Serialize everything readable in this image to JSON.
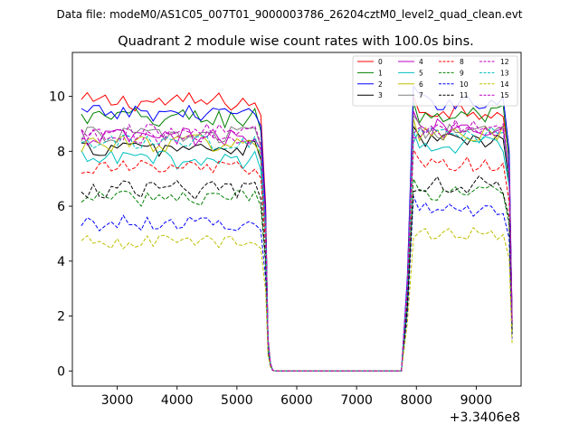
{
  "header": {
    "data_file": "Data file: modeM0/AS1C05_007T01_9000003786_26204cztM0_level2_quad_clean.evt"
  },
  "chart_data": {
    "type": "line",
    "title": "Quadrant 2 module wise count rates with 100.0s bins.",
    "xlabel": "",
    "ylabel": "",
    "x_offset_label": "+3.3406e8",
    "xlim": [
      2250,
      9750
    ],
    "ylim": [
      -0.55,
      11.6
    ],
    "xticks": [
      3000,
      4000,
      5000,
      6000,
      7000,
      8000,
      9000
    ],
    "yticks": [
      0,
      2,
      4,
      6,
      8,
      10
    ],
    "legend_position": "top-right",
    "time_segments": {
      "x1": [
        2400,
        2500,
        2600,
        2700,
        2800,
        2900,
        3000,
        3100,
        3200,
        3300,
        3400,
        3500,
        3600,
        3700,
        3800,
        3900,
        4000,
        4100,
        4200,
        4300,
        4400,
        4500,
        4600,
        4700,
        4800,
        4900,
        5000,
        5100,
        5200,
        5300,
        5400
      ],
      "gap": [
        5480,
        5520,
        5560,
        5600,
        5650,
        7750
      ],
      "x2": [
        7850,
        7950,
        8050,
        8150,
        8250,
        8350,
        8450,
        8550,
        8650,
        8750,
        8850,
        8950,
        9050,
        9150,
        9250,
        9350,
        9450,
        9550,
        9600
      ]
    },
    "series": [
      {
        "name": "0",
        "color": "#ff0000",
        "dash": "solid",
        "mean1": 9.8,
        "mean2": 9.5,
        "amp": 0.35
      },
      {
        "name": "1",
        "color": "#008000",
        "dash": "solid",
        "mean1": 9.2,
        "mean2": 9.3,
        "amp": 0.4
      },
      {
        "name": "2",
        "color": "#0000ff",
        "dash": "solid",
        "mean1": 9.4,
        "mean2": 9.8,
        "amp": 0.3
      },
      {
        "name": "3",
        "color": "#000000",
        "dash": "solid",
        "mean1": 8.1,
        "mean2": 8.4,
        "amp": 0.3
      },
      {
        "name": "4",
        "color": "#bf00bf",
        "dash": "solid",
        "mean1": 8.5,
        "mean2": 8.9,
        "amp": 0.35
      },
      {
        "name": "5",
        "color": "#00bfbf",
        "dash": "solid",
        "mean1": 7.7,
        "mean2": 8.2,
        "amp": 0.35
      },
      {
        "name": "6",
        "color": "#bfbf00",
        "dash": "solid",
        "mean1": 8.3,
        "mean2": 8.6,
        "amp": 0.35
      },
      {
        "name": "7",
        "color": "#808080",
        "dash": "solid",
        "mean1": 8.6,
        "mean2": 8.7,
        "amp": 0.3
      },
      {
        "name": "8",
        "color": "#ff0000",
        "dash": "dashed",
        "mean1": 7.4,
        "mean2": 7.5,
        "amp": 0.3
      },
      {
        "name": "9",
        "color": "#008000",
        "dash": "dashed",
        "mean1": 6.3,
        "mean2": 6.5,
        "amp": 0.3
      },
      {
        "name": "10",
        "color": "#0000ff",
        "dash": "dashed",
        "mean1": 5.4,
        "mean2": 5.9,
        "amp": 0.3
      },
      {
        "name": "11",
        "color": "#000000",
        "dash": "dashed",
        "mean1": 6.6,
        "mean2": 6.8,
        "amp": 0.35
      },
      {
        "name": "12",
        "color": "#bf00bf",
        "dash": "dashed",
        "mean1": 8.5,
        "mean2": 8.8,
        "amp": 0.3
      },
      {
        "name": "13",
        "color": "#00bfbf",
        "dash": "dashed",
        "mean1": 8.3,
        "mean2": 8.6,
        "amp": 0.3
      },
      {
        "name": "14",
        "color": "#bfbf00",
        "dash": "dashed",
        "mean1": 4.7,
        "mean2": 5.0,
        "amp": 0.25
      },
      {
        "name": "15",
        "color": "#bf00bf",
        "dash": "dashed",
        "mean1": 8.7,
        "mean2": 8.9,
        "amp": 0.3
      }
    ]
  }
}
